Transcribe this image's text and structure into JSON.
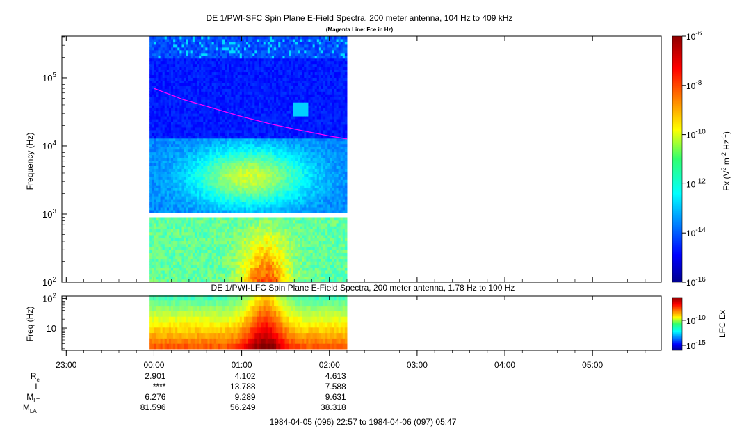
{
  "chart_data": [
    {
      "type": "heatmap",
      "title": "DE 1/PWI-SFC  Spin Plane E-Field Spectra, 200 meter antenna, 104 Hz to 409 kHz",
      "subtitle": "(Magenta Line: Fce in Hz)",
      "ylabel": "Frequency (Hz)",
      "yscale": "log",
      "ylim": [
        100,
        409000
      ],
      "y_ticks": [
        {
          "base": "10",
          "exp": "2",
          "value": 100
        },
        {
          "base": "10",
          "exp": "3",
          "value": 1000
        },
        {
          "base": "10",
          "exp": "4",
          "value": 10000
        },
        {
          "base": "10",
          "exp": "5",
          "value": 100000
        }
      ],
      "data_coverage_utc": [
        "23:57",
        "02:12"
      ],
      "data_gap_hz": [
        900,
        1050
      ],
      "colorbar": {
        "label_prefix": "Ex (V",
        "label_sup1": "2",
        "label_mid": " m",
        "label_sup2": "-2",
        "label_mid2": " Hz",
        "label_sup3": "-1",
        "label_suffix": ")",
        "scale": "log",
        "range": [
          1e-16,
          1e-06
        ],
        "ticks": [
          {
            "base": "10",
            "exp": "-6",
            "value": -6
          },
          {
            "base": "10",
            "exp": "-8",
            "value": -8
          },
          {
            "base": "10",
            "exp": "-10",
            "value": -10
          },
          {
            "base": "10",
            "exp": "-12",
            "value": -12
          },
          {
            "base": "10",
            "exp": "-14",
            "value": -14
          },
          {
            "base": "10",
            "exp": "-16",
            "value": -16
          }
        ]
      },
      "fce_line": {
        "color": "#ff00ff",
        "t_min": [
          0,
          20,
          40,
          60,
          80,
          100,
          120,
          132
        ],
        "freq_hz": [
          70000,
          48000,
          36000,
          27000,
          21000,
          17000,
          14000,
          12700
        ]
      }
    },
    {
      "type": "heatmap",
      "title": "DE 1/PWI-LFC  Spin Plane E-Field Spectra, 200 meter antenna, 1.78 Hz to 100 Hz",
      "ylabel": "Freq (Hz)",
      "yscale": "log",
      "ylim": [
        1.78,
        120
      ],
      "y_ticks": [
        {
          "base": "10",
          "exp": "",
          "value": 10
        },
        {
          "base": "10",
          "exp": "2",
          "value": 100
        }
      ],
      "colorbar": {
        "label": "LFC Ex",
        "scale": "log",
        "ticks": [
          {
            "base": "10",
            "exp": "-10",
            "value": -10
          },
          {
            "base": "10",
            "exp": "-15",
            "value": -15
          }
        ]
      }
    }
  ],
  "x_axis": {
    "ticks": [
      {
        "label": "23:00",
        "t_min": -60
      },
      {
        "label": "00:00",
        "t_min": 0
      },
      {
        "label": "01:00",
        "t_min": 60
      },
      {
        "label": "02:00",
        "t_min": 120
      },
      {
        "label": "03:00",
        "t_min": 180
      },
      {
        "label": "04:00",
        "t_min": 240
      },
      {
        "label": "05:00",
        "t_min": 300
      }
    ],
    "range_min": [
      -63,
      347
    ],
    "range_text": "1984-04-05 (096) 22:57 to 1984-04-06 (097) 05:47"
  },
  "ephemeris": {
    "rows": [
      {
        "label": "R",
        "sub": "e",
        "values": [
          "2.901",
          "4.102",
          "4.613"
        ]
      },
      {
        "label": "L",
        "sub": "",
        "values": [
          "****",
          "13.788",
          "7.588"
        ]
      },
      {
        "label": "M",
        "sub": "LT",
        "values": [
          "6.276",
          "9.289",
          "9.631"
        ]
      },
      {
        "label": "M",
        "sub": "LAT",
        "values": [
          "81.596",
          "56.249",
          "38.318"
        ]
      }
    ]
  }
}
